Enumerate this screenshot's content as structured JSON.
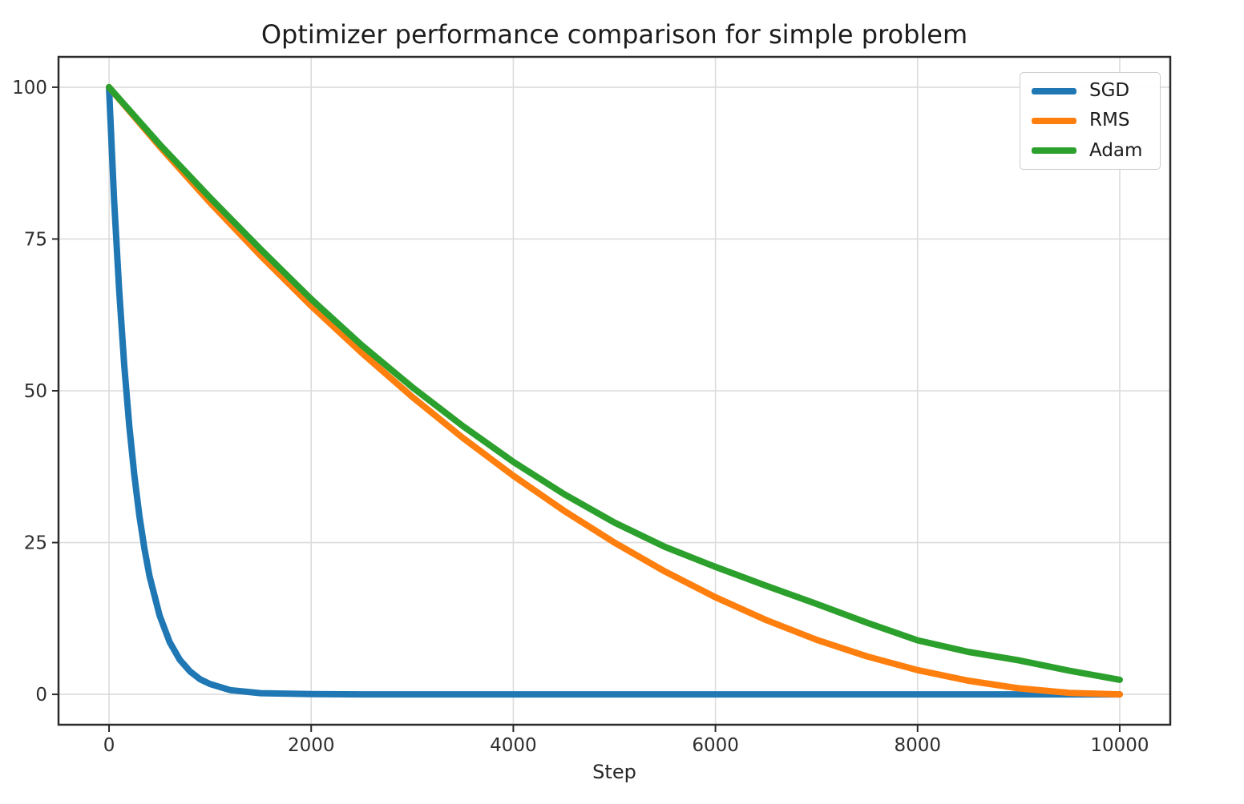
{
  "chart_data": {
    "type": "line",
    "title": "Optimizer performance comparison for simple problem",
    "xlabel": "Step",
    "ylabel": "",
    "xlim": [
      -500,
      10500
    ],
    "ylim": [
      -5,
      105
    ],
    "x_ticks": [
      0,
      2000,
      4000,
      6000,
      8000,
      10000
    ],
    "y_ticks": [
      0,
      25,
      50,
      75,
      100
    ],
    "grid": true,
    "legend_position": "upper right",
    "style": {
      "grid_color": "#dcdcdc",
      "spine_color": "#2b2b2b",
      "tick_text_color": "#2e2e2e",
      "title_color": "#1c1c1c",
      "background": "#ffffff"
    },
    "series": [
      {
        "name": "SGD",
        "color": "#1f77b4",
        "x": [
          0,
          50,
          100,
          150,
          200,
          250,
          300,
          350,
          400,
          500,
          600,
          700,
          800,
          900,
          1000,
          1200,
          1500,
          2000,
          2500,
          3000,
          4000,
          5000,
          6000,
          7000,
          8000,
          9000,
          10000
        ],
        "y": [
          100,
          81.5,
          66.5,
          54.2,
          44.2,
          36.1,
          29.4,
          24.0,
          19.5,
          13.0,
          8.6,
          5.7,
          3.8,
          2.5,
          1.7,
          0.7,
          0.2,
          0.05,
          0,
          0,
          0,
          0,
          0,
          0,
          0,
          0,
          0
        ]
      },
      {
        "name": "RMS",
        "color": "#ff7f0e",
        "x": [
          0,
          500,
          1000,
          1500,
          2000,
          2500,
          3000,
          3500,
          4000,
          4500,
          5000,
          5500,
          6000,
          6500,
          7000,
          7500,
          8000,
          8500,
          9000,
          9500,
          10000
        ],
        "y": [
          100,
          90.25,
          81,
          72.25,
          64,
          56.25,
          49,
          42.25,
          36,
          30.25,
          25,
          20.25,
          16,
          12.25,
          9,
          6.25,
          4,
          2.25,
          1,
          0.25,
          0
        ]
      },
      {
        "name": "Adam",
        "color": "#2ca02c",
        "x": [
          0,
          500,
          1000,
          1500,
          2000,
          2500,
          3000,
          3500,
          4000,
          4500,
          5000,
          5500,
          6000,
          6500,
          7000,
          7500,
          8000,
          8500,
          9000,
          9500,
          10000
        ],
        "y": [
          100,
          90.6,
          81.8,
          73.3,
          65.1,
          57.5,
          50.6,
          44.2,
          38.3,
          33.0,
          28.3,
          24.3,
          21.0,
          17.9,
          14.9,
          11.8,
          8.9,
          7.0,
          5.6,
          3.9,
          2.4
        ]
      }
    ]
  }
}
